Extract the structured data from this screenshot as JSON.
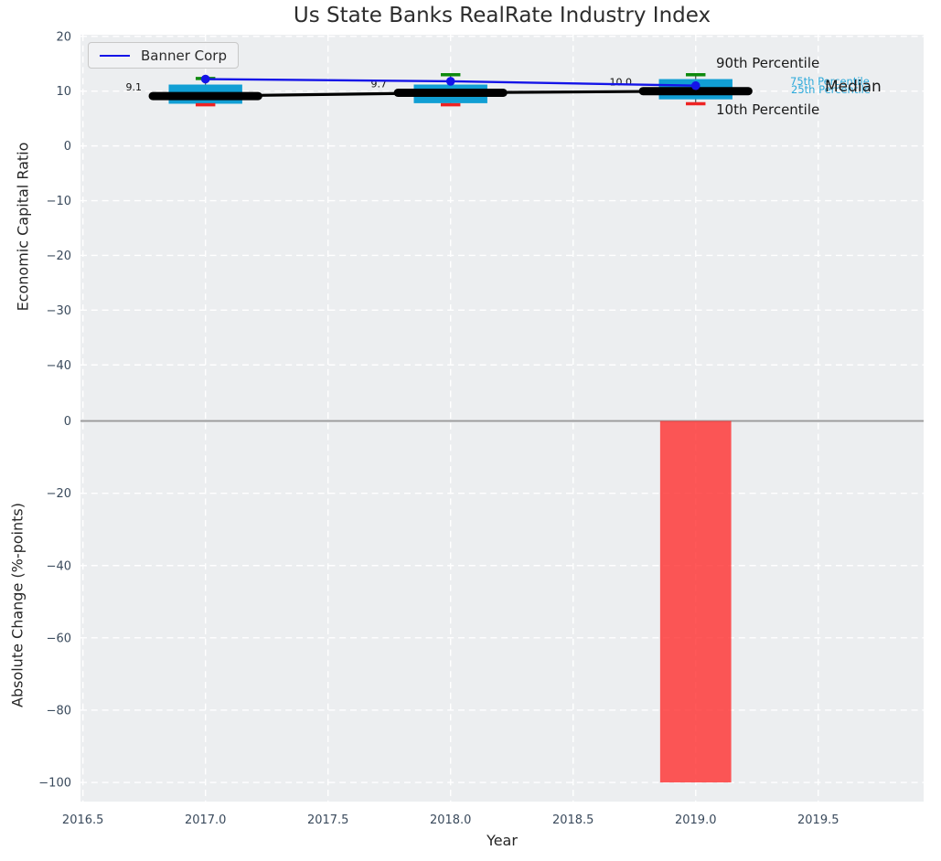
{
  "legend": {
    "label": "Banner Corp"
  },
  "annotations": {
    "p90": "90th Percentile",
    "p75": "75th Percentile",
    "p25": "25th Percentile",
    "median": "Median",
    "p10": "10th Percentile"
  },
  "colors": {
    "plot_bg": "#eceef0",
    "grid": "#ffffff",
    "banner_line": "#1414e8",
    "box_fill": "#119fd4",
    "whisker": "#3c3c3c",
    "cap_top": "#0e8a0e",
    "cap_bottom": "#ee2222",
    "median_line": "#000000",
    "bar": "#ff2e2e",
    "zero_line": "#9a9a9a",
    "tick_text": "#3a4a5c",
    "annotation_cyan": "#2ca9da",
    "value_label_text": "#111111"
  },
  "chart_data": [
    {
      "type": "box",
      "title": "Us State Banks RealRate Industry Index",
      "ylabel": "Economic Capital Ratio",
      "x": [
        2017,
        2018,
        2019
      ],
      "xlim": [
        2016.49,
        2019.93
      ],
      "ylim": [
        -46.8,
        20.3
      ],
      "grid": true,
      "legend_position": "upper left",
      "xticks": {
        "values": [
          2016.5,
          2017.0,
          2017.5,
          2018.0,
          2018.5,
          2019.0,
          2019.5
        ],
        "labels": [
          "2016.5",
          "2017.0",
          "2017.5",
          "2018.0",
          "2018.5",
          "2019.0",
          "2019.5"
        ]
      },
      "yticks": {
        "values": [
          20,
          10,
          0,
          -10,
          -20,
          -30,
          -40
        ],
        "labels": [
          "20",
          "10",
          "0",
          "−10",
          "−20",
          "−30",
          "−40"
        ]
      },
      "boxes": [
        {
          "x": 2017,
          "p10": 7.5,
          "p25": 7.7,
          "median": 9.1,
          "p75": 11.2,
          "p90": 12.3
        },
        {
          "x": 2018,
          "p10": 7.5,
          "p25": 7.8,
          "median": 9.7,
          "p75": 11.2,
          "p90": 13.0
        },
        {
          "x": 2019,
          "p10": 7.7,
          "p25": 8.5,
          "median": 10.0,
          "p75": 12.2,
          "p90": 13.0
        }
      ],
      "median_labels": [
        "9.1",
        "9.7",
        "10.0"
      ],
      "series": [
        {
          "name": "Banner Corp",
          "values": [
            12.2,
            11.8,
            11.0
          ]
        }
      ],
      "box_width": 0.3,
      "cap_width": 0.08,
      "median_segment_halfwidth": 0.215
    },
    {
      "type": "bar",
      "ylabel": "Absolute Change (%-points)",
      "xlabel": "Year",
      "categories": [
        2019
      ],
      "values": [
        -100
      ],
      "bar_width": 0.29,
      "bar_opacity": 0.8,
      "ylim": [
        -105.3,
        5.2
      ],
      "zero_line": true,
      "yticks": {
        "values": [
          0,
          -20,
          -40,
          -60,
          -80,
          -100
        ],
        "labels": [
          "0",
          "−20",
          "−40",
          "−60",
          "−80",
          "−100"
        ]
      }
    }
  ]
}
